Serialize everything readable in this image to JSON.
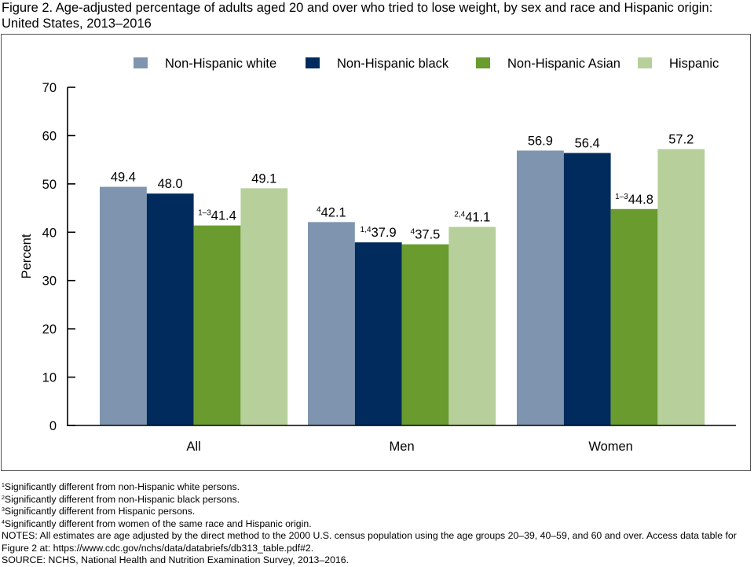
{
  "figure": {
    "title": "Figure 2. Age-adjusted percentage of adults aged 20 and over who tried to lose weight, by sex and race and Hispanic origin: United States, 2013–2016"
  },
  "chart_data": {
    "type": "bar",
    "title": "Age-adjusted percentage of adults aged 20 and over who tried to lose weight, by sex and race and Hispanic origin: United States, 2013–2016",
    "xlabel": "",
    "ylabel": "Percent",
    "ylim": [
      0,
      70
    ],
    "yticks": [
      0,
      10,
      20,
      30,
      40,
      50,
      60,
      70
    ],
    "grid": false,
    "legend_position": "top",
    "categories": [
      "All",
      "Men",
      "Women"
    ],
    "series": [
      {
        "name": "Non-Hispanic white",
        "color": "#7f94ae",
        "values": [
          49.4,
          42.1,
          56.9
        ],
        "labels": [
          "49.4",
          "42.1",
          "56.9"
        ],
        "superscripts": [
          "",
          "4",
          ""
        ]
      },
      {
        "name": "Non-Hispanic black",
        "color": "#002b5c",
        "values": [
          48.0,
          37.9,
          56.4
        ],
        "labels": [
          "48.0",
          "37.9",
          "56.4"
        ],
        "superscripts": [
          "",
          "1,4",
          ""
        ]
      },
      {
        "name": "Non-Hispanic Asian",
        "color": "#6a9b2f",
        "values": [
          41.4,
          37.5,
          44.8
        ],
        "labels": [
          "41.4",
          "37.5",
          "44.8"
        ],
        "superscripts": [
          "1–3",
          "4",
          "1–3"
        ]
      },
      {
        "name": "Hispanic",
        "color": "#b7d09b",
        "values": [
          49.1,
          41.1,
          57.2
        ],
        "labels": [
          "49.1",
          "41.1",
          "57.2"
        ],
        "superscripts": [
          "",
          "2,4",
          ""
        ]
      }
    ]
  },
  "footnotes": [
    {
      "mark": "1",
      "text": "Significantly different from non-Hispanic white persons."
    },
    {
      "mark": "2",
      "text": "Significantly different from non-Hispanic black persons."
    },
    {
      "mark": "3",
      "text": "Significantly different from Hispanic persons."
    },
    {
      "mark": "4",
      "text": "Significantly different from women of the same race and Hispanic origin."
    }
  ],
  "notes": "NOTES: All estimates are age adjusted by the direct method to the 2000 U.S. census population using the age groups 20–39, 40–59, and 60 and over. Access data table for Figure 2 at: https://www.cdc.gov/nchs/data/databriefs/db313_table.pdf#2.",
  "source": "SOURCE: NCHS, National Health and Nutrition Examination Survey, 2013–2016."
}
